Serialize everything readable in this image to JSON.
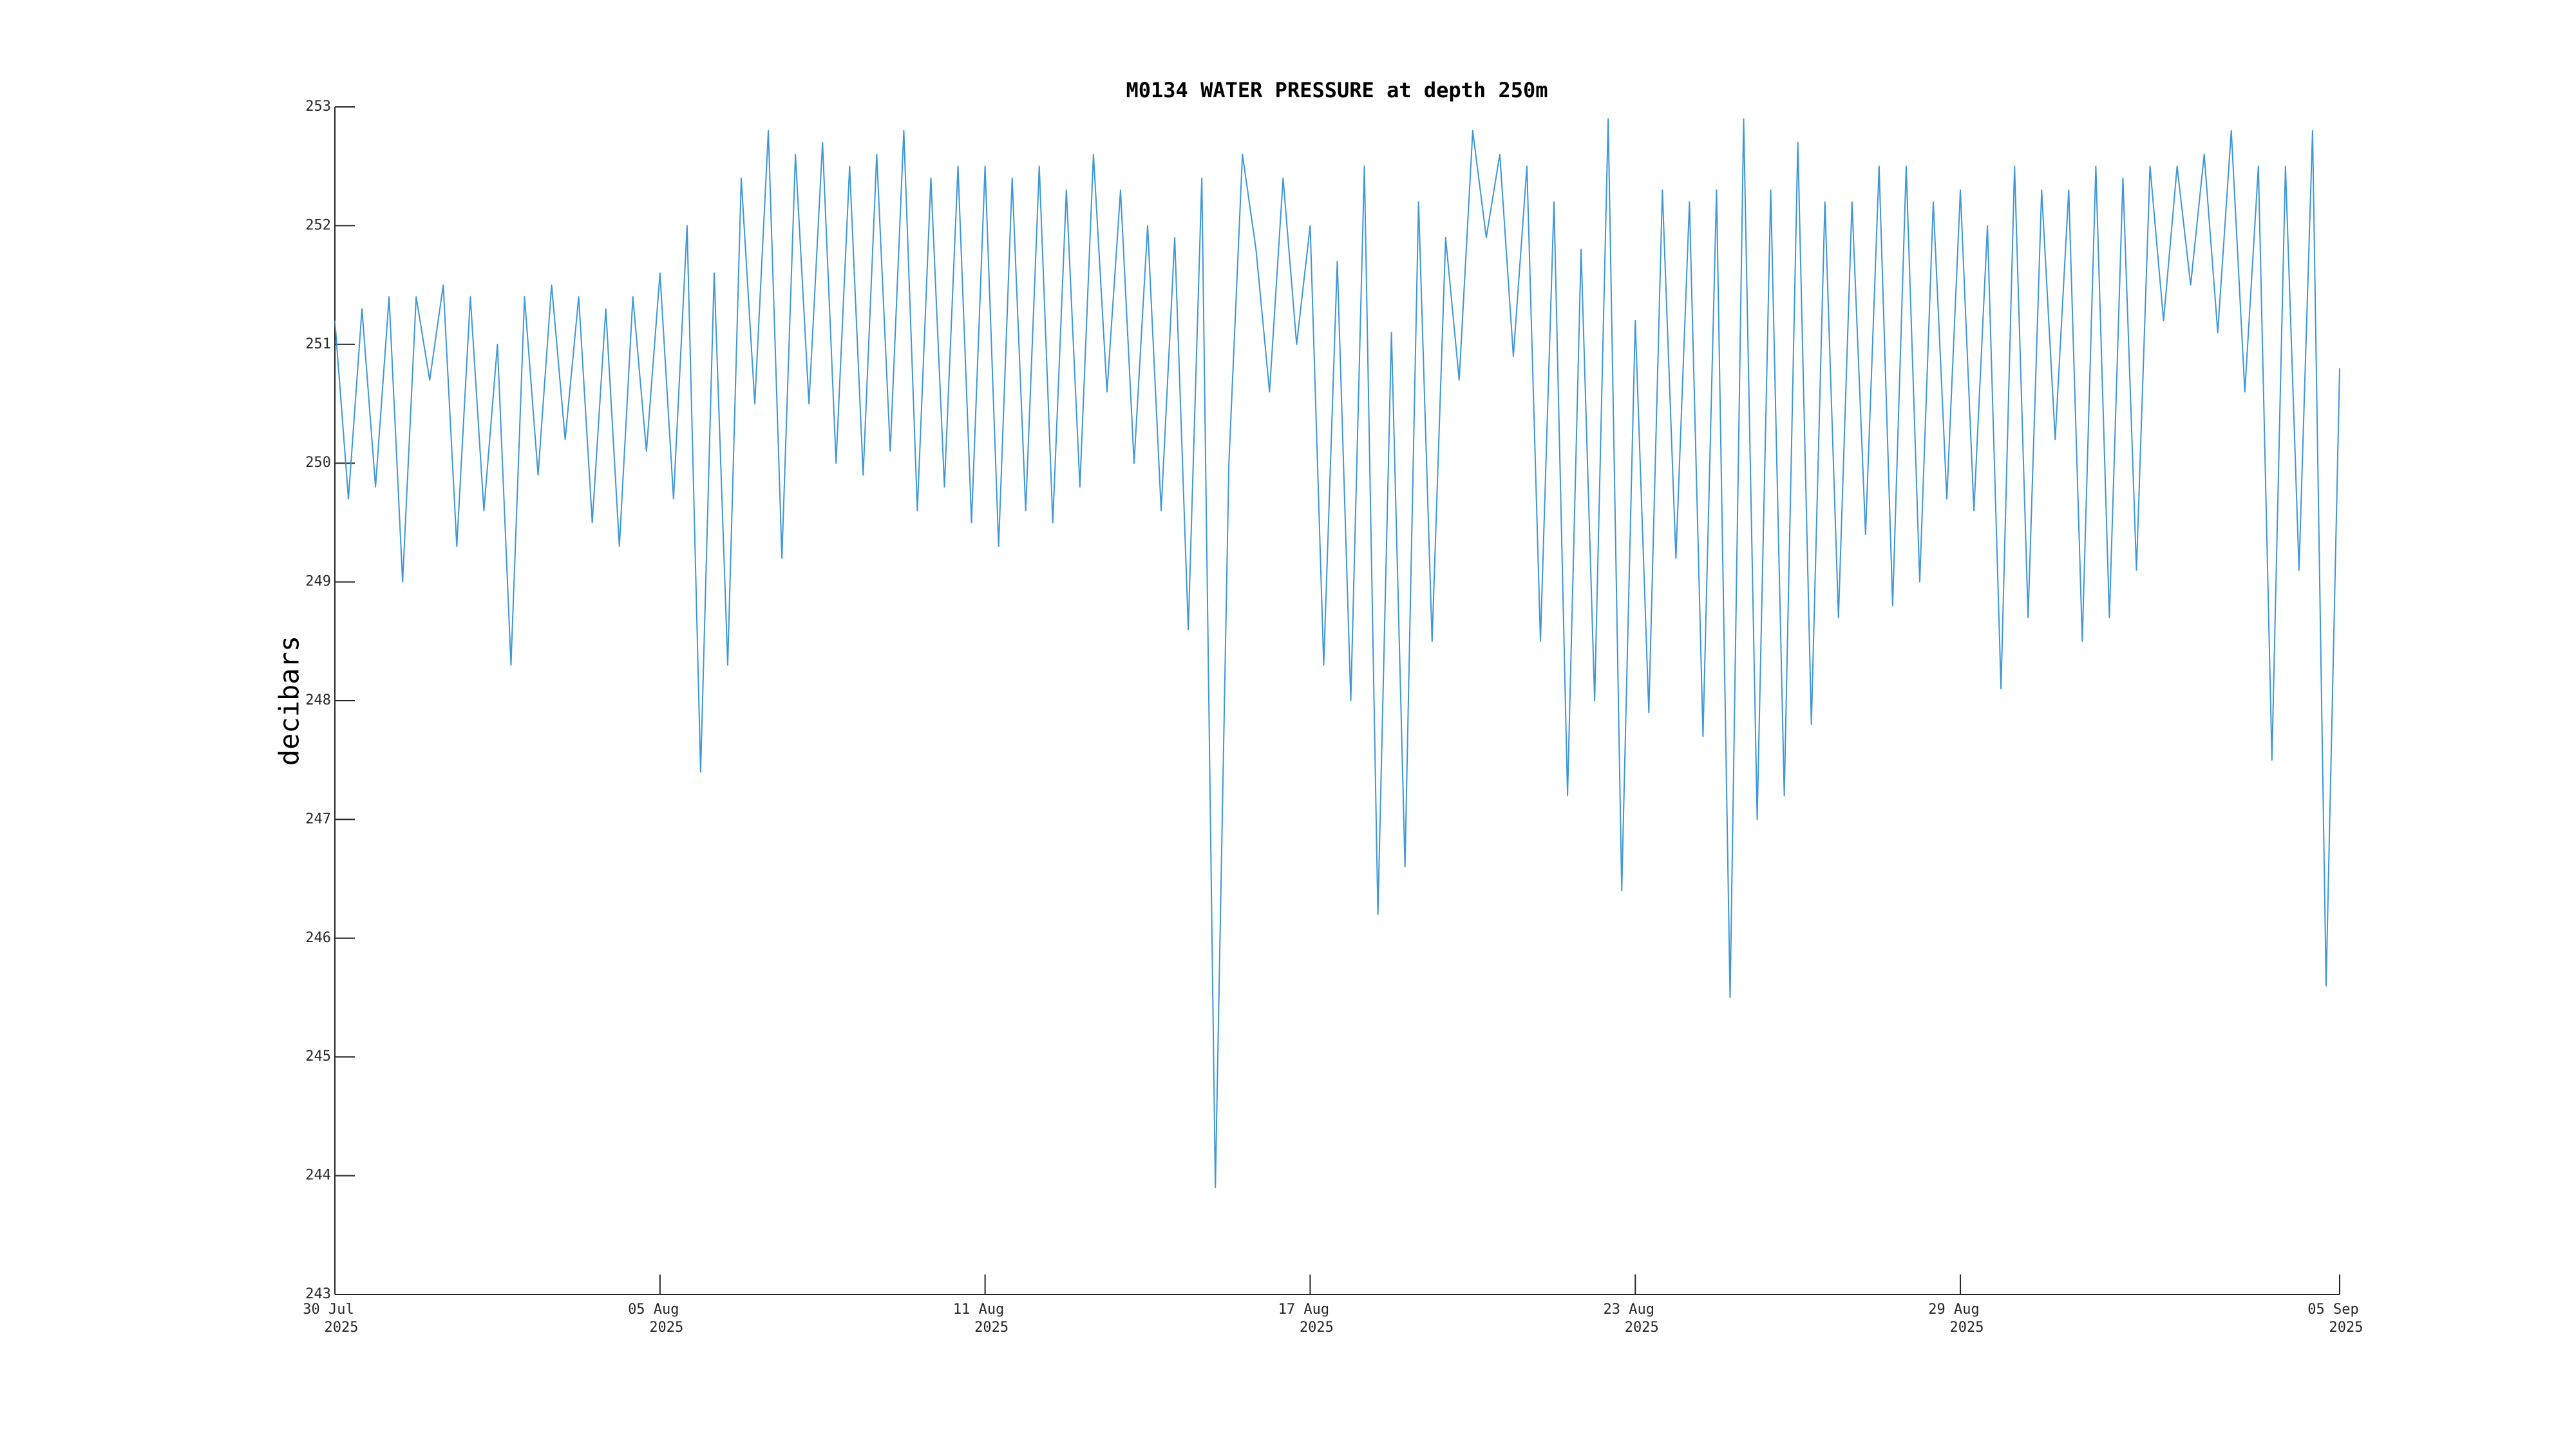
{
  "chart_data": {
    "type": "line",
    "title": "M0134 WATER PRESSURE at depth 250m",
    "ylabel": "decibars",
    "color": "#3d97d8",
    "xlim": [
      "2025-07-30",
      "2025-09-05"
    ],
    "xticks": [
      {
        "value": "2025-07-30",
        "label": [
          "30 Jul",
          "2025"
        ]
      },
      {
        "value": "2025-08-05",
        "label": [
          "05 Aug",
          "2025"
        ]
      },
      {
        "value": "2025-08-11",
        "label": [
          "11 Aug",
          "2025"
        ]
      },
      {
        "value": "2025-08-17",
        "label": [
          "17 Aug",
          "2025"
        ]
      },
      {
        "value": "2025-08-23",
        "label": [
          "23 Aug",
          "2025"
        ]
      },
      {
        "value": "2025-08-29",
        "label": [
          "29 Aug",
          "2025"
        ]
      },
      {
        "value": "2025-09-05",
        "label": [
          "05 Sep",
          "2025"
        ]
      }
    ],
    "ylim": [
      243,
      253
    ],
    "yticks": [
      243,
      244,
      245,
      246,
      247,
      248,
      249,
      250,
      251,
      252,
      253
    ],
    "grid": false,
    "x": [
      "2025-07-30T00:00",
      "2025-07-30T06:00",
      "2025-07-30T12:00",
      "2025-07-30T18:00",
      "2025-07-31T00:00",
      "2025-07-31T06:00",
      "2025-07-31T12:00",
      "2025-07-31T18:00",
      "2025-08-01T00:00",
      "2025-08-01T06:00",
      "2025-08-01T12:00",
      "2025-08-01T18:00",
      "2025-08-02T00:00",
      "2025-08-02T06:00",
      "2025-08-02T12:00",
      "2025-08-02T18:00",
      "2025-08-03T00:00",
      "2025-08-03T06:00",
      "2025-08-03T12:00",
      "2025-08-03T18:00",
      "2025-08-04T00:00",
      "2025-08-04T06:00",
      "2025-08-04T12:00",
      "2025-08-04T18:00",
      "2025-08-05T00:00",
      "2025-08-05T06:00",
      "2025-08-05T12:00",
      "2025-08-05T18:00",
      "2025-08-06T00:00",
      "2025-08-06T06:00",
      "2025-08-06T12:00",
      "2025-08-06T18:00",
      "2025-08-07T00:00",
      "2025-08-07T06:00",
      "2025-08-07T12:00",
      "2025-08-07T18:00",
      "2025-08-08T00:00",
      "2025-08-08T06:00",
      "2025-08-08T12:00",
      "2025-08-08T18:00",
      "2025-08-09T00:00",
      "2025-08-09T06:00",
      "2025-08-09T12:00",
      "2025-08-09T18:00",
      "2025-08-10T00:00",
      "2025-08-10T06:00",
      "2025-08-10T12:00",
      "2025-08-10T18:00",
      "2025-08-11T00:00",
      "2025-08-11T06:00",
      "2025-08-11T12:00",
      "2025-08-11T18:00",
      "2025-08-12T00:00",
      "2025-08-12T06:00",
      "2025-08-12T12:00",
      "2025-08-12T18:00",
      "2025-08-13T00:00",
      "2025-08-13T06:00",
      "2025-08-13T12:00",
      "2025-08-13T18:00",
      "2025-08-14T00:00",
      "2025-08-14T06:00",
      "2025-08-14T12:00",
      "2025-08-14T18:00",
      "2025-08-15T00:00",
      "2025-08-15T06:00",
      "2025-08-15T12:00",
      "2025-08-15T18:00",
      "2025-08-16T00:00",
      "2025-08-16T06:00",
      "2025-08-16T12:00",
      "2025-08-16T18:00",
      "2025-08-17T00:00",
      "2025-08-17T06:00",
      "2025-08-17T12:00",
      "2025-08-17T18:00",
      "2025-08-18T00:00",
      "2025-08-18T06:00",
      "2025-08-18T12:00",
      "2025-08-18T18:00",
      "2025-08-19T00:00",
      "2025-08-19T06:00",
      "2025-08-19T12:00",
      "2025-08-19T18:00",
      "2025-08-20T00:00",
      "2025-08-20T06:00",
      "2025-08-20T12:00",
      "2025-08-20T18:00",
      "2025-08-21T00:00",
      "2025-08-21T06:00",
      "2025-08-21T12:00",
      "2025-08-21T18:00",
      "2025-08-22T00:00",
      "2025-08-22T06:00",
      "2025-08-22T12:00",
      "2025-08-22T18:00",
      "2025-08-23T00:00",
      "2025-08-23T06:00",
      "2025-08-23T12:00",
      "2025-08-23T18:00",
      "2025-08-24T00:00",
      "2025-08-24T06:00",
      "2025-08-24T12:00",
      "2025-08-24T18:00",
      "2025-08-25T00:00",
      "2025-08-25T06:00",
      "2025-08-25T12:00",
      "2025-08-25T18:00",
      "2025-08-26T00:00",
      "2025-08-26T06:00",
      "2025-08-26T12:00",
      "2025-08-26T18:00",
      "2025-08-27T00:00",
      "2025-08-27T06:00",
      "2025-08-27T12:00",
      "2025-08-27T18:00",
      "2025-08-28T00:00",
      "2025-08-28T06:00",
      "2025-08-28T12:00",
      "2025-08-28T18:00",
      "2025-08-29T00:00",
      "2025-08-29T06:00",
      "2025-08-29T12:00",
      "2025-08-29T18:00",
      "2025-08-30T00:00",
      "2025-08-30T06:00",
      "2025-08-30T12:00",
      "2025-08-30T18:00",
      "2025-08-31T00:00",
      "2025-08-31T06:00",
      "2025-08-31T12:00",
      "2025-08-31T18:00",
      "2025-09-01T00:00",
      "2025-09-01T06:00",
      "2025-09-01T12:00",
      "2025-09-01T18:00",
      "2025-09-02T00:00",
      "2025-09-02T06:00",
      "2025-09-02T12:00",
      "2025-09-02T18:00",
      "2025-09-03T00:00",
      "2025-09-03T06:00",
      "2025-09-03T12:00",
      "2025-09-03T18:00",
      "2025-09-04T00:00",
      "2025-09-04T06:00",
      "2025-09-04T12:00",
      "2025-09-04T18:00",
      "2025-09-05T00:00"
    ],
    "values": [
      251.2,
      249.7,
      251.3,
      249.8,
      251.4,
      249.0,
      251.4,
      250.7,
      251.5,
      249.3,
      251.4,
      249.6,
      251.0,
      248.3,
      251.4,
      249.9,
      251.5,
      250.2,
      251.4,
      249.5,
      251.3,
      249.3,
      251.4,
      250.1,
      251.6,
      249.7,
      252.0,
      247.4,
      251.6,
      248.3,
      252.4,
      250.5,
      252.8,
      249.2,
      252.6,
      250.5,
      252.7,
      250.0,
      252.5,
      249.9,
      252.6,
      250.1,
      252.8,
      249.6,
      252.4,
      249.8,
      252.5,
      249.5,
      252.5,
      249.3,
      252.4,
      249.6,
      252.5,
      249.5,
      252.3,
      249.8,
      252.6,
      250.6,
      252.3,
      250.0,
      252.0,
      249.6,
      251.9,
      248.6,
      252.4,
      243.9,
      250.0,
      252.6,
      251.8,
      250.6,
      252.4,
      251.0,
      252.0,
      248.3,
      251.7,
      248.0,
      252.5,
      246.2,
      251.1,
      246.6,
      252.2,
      248.5,
      251.9,
      250.7,
      252.8,
      251.9,
      252.6,
      250.9,
      252.5,
      248.5,
      252.2,
      247.2,
      251.8,
      248.0,
      252.9,
      246.4,
      251.2,
      247.9,
      252.3,
      249.2,
      252.2,
      247.7,
      252.3,
      245.5,
      252.9,
      247.0,
      252.3,
      247.2,
      252.7,
      247.8,
      252.2,
      248.7,
      252.2,
      249.4,
      252.5,
      248.8,
      252.5,
      249.0,
      252.2,
      249.7,
      252.3,
      249.6,
      252.0,
      248.1,
      252.5,
      248.7,
      252.3,
      250.2,
      252.3,
      248.5,
      252.5,
      248.7,
      252.4,
      249.1,
      252.5,
      251.2,
      252.5,
      251.5,
      252.6,
      251.1,
      252.8,
      250.6,
      252.5,
      247.5,
      252.5,
      249.1,
      252.8,
      245.6,
      250.8
    ]
  }
}
